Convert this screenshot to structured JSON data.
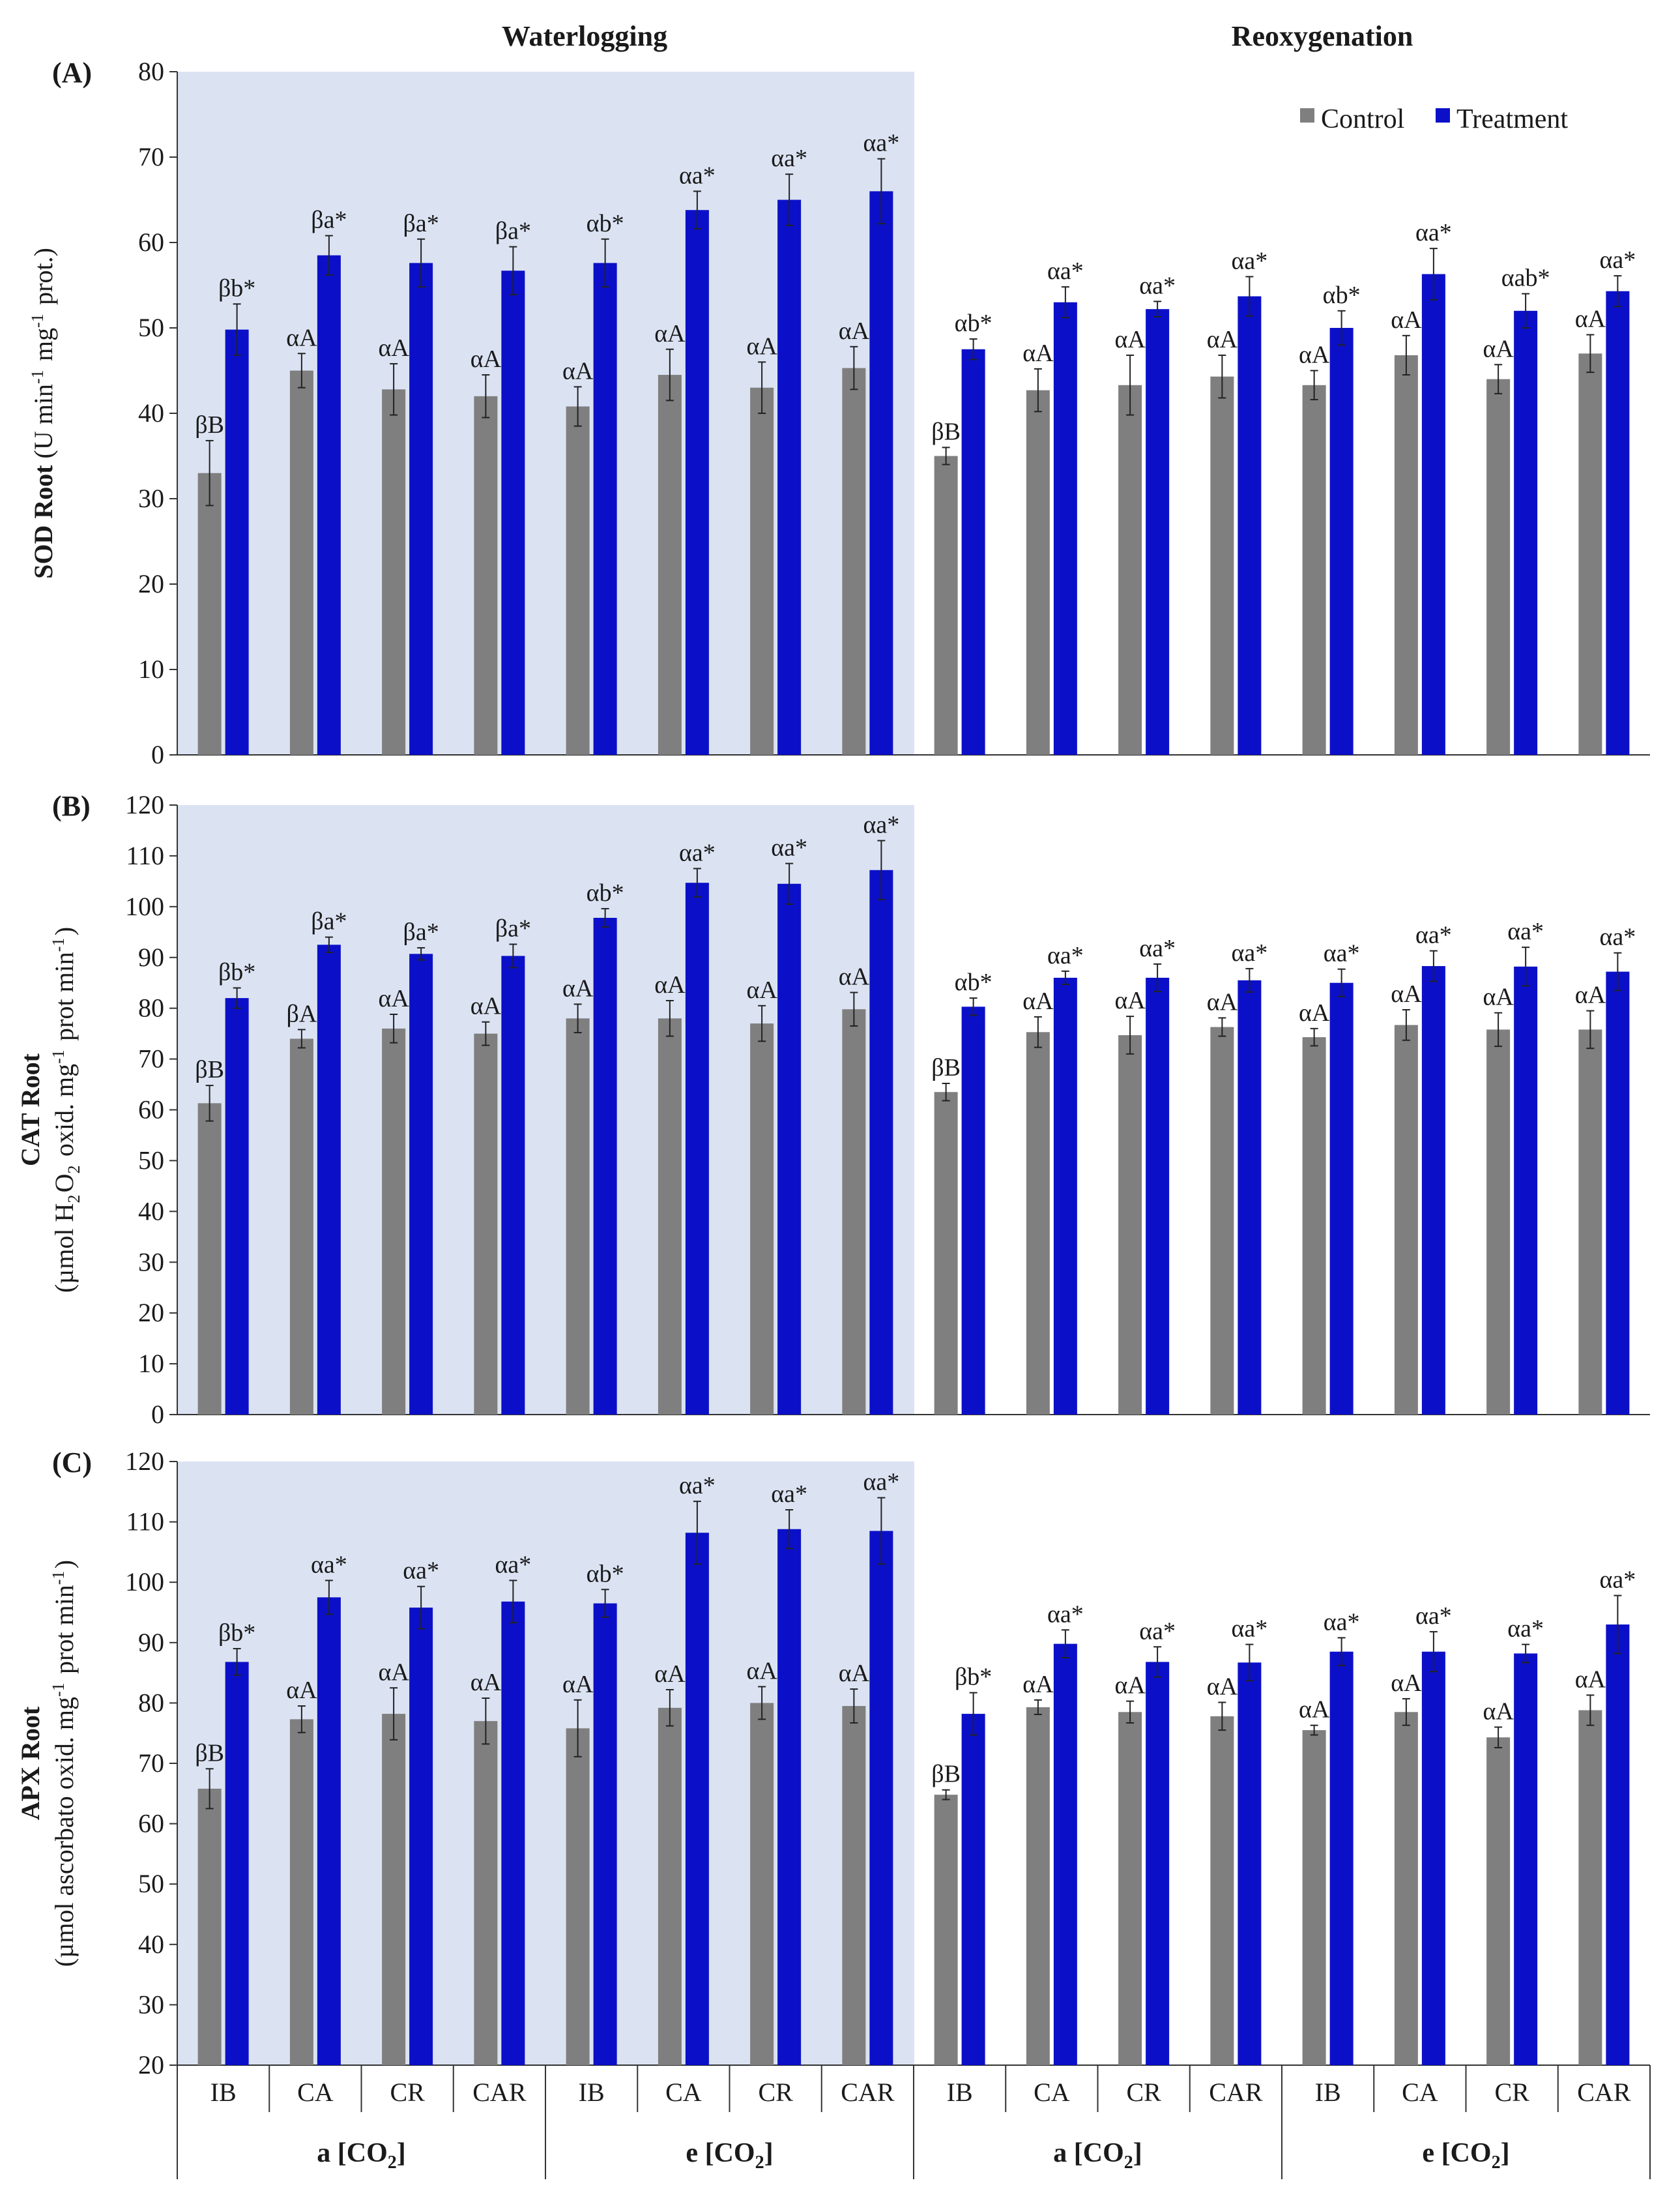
{
  "titles": {
    "left": "Waterlogging",
    "right": "Reoxygenation"
  },
  "legend": {
    "control": "Control",
    "treatment": "Treatment"
  },
  "colors": {
    "control": "#7f7f7f",
    "treatment": "#0b10c8",
    "shade": "#dbe3f3",
    "error": "#222222"
  },
  "x_axis": {
    "categories": [
      "IB",
      "CA",
      "CR",
      "CAR",
      "IB",
      "CA",
      "CR",
      "CAR",
      "IB",
      "CA",
      "CR",
      "CAR",
      "IB",
      "CA",
      "CR",
      "CAR"
    ],
    "groups": [
      "a [CO2]",
      "e [CO2]",
      "a [CO2]",
      "e [CO2]"
    ]
  },
  "chart_data": [
    {
      "type": "bar",
      "panel_label": "(A)",
      "ylabel": "SOD Root (U min-1 mg-1 prot.)",
      "ylim": [
        0,
        80
      ],
      "ytick_step": 10,
      "yticks": [
        "0",
        "10",
        "20",
        "30",
        "40",
        "50",
        "60",
        "70",
        "80"
      ],
      "shaded_region": "Waterlogging",
      "series": [
        {
          "name": "Control",
          "values": [
            33,
            45,
            42.8,
            42,
            40.8,
            44.5,
            43,
            45.3,
            35,
            42.7,
            43.3,
            44.3,
            43.3,
            46.8,
            44,
            47
          ],
          "errors": [
            3.8,
            2,
            3,
            2.5,
            2.3,
            3,
            3,
            2.5,
            1,
            2.5,
            3.5,
            2.5,
            1.7,
            2.3,
            1.7,
            2.2
          ],
          "labels": [
            "βB",
            "αA",
            "αA",
            "αA",
            "αA",
            "αA",
            "αA",
            "αA",
            "βB",
            "αA",
            "αA",
            "αA",
            "αA",
            "αA",
            "αA",
            "αA"
          ]
        },
        {
          "name": "Treatment",
          "values": [
            49.8,
            58.5,
            57.6,
            56.7,
            57.6,
            63.8,
            65,
            66,
            47.5,
            53,
            52.2,
            53.7,
            50,
            56.3,
            52,
            54.3
          ],
          "errors": [
            3,
            2.3,
            2.8,
            2.8,
            2.8,
            2.2,
            3,
            3.8,
            1.2,
            1.8,
            0.9,
            2.3,
            2,
            3,
            2,
            1.8
          ],
          "labels": [
            "βb*",
            "βa*",
            "βa*",
            "βa*",
            "αb*",
            "αa*",
            "αa*",
            "αa*",
            "αb*",
            "αa*",
            "αa*",
            "αa*",
            "αb*",
            "αa*",
            "αab*",
            "αa*"
          ]
        }
      ]
    },
    {
      "type": "bar",
      "panel_label": "(B)",
      "ylabel_line1": "CAT Root",
      "ylabel_line2": "(µmol H2O2 oxid. mg-1 prot min-1)",
      "ylim": [
        0,
        120
      ],
      "ytick_step": 10,
      "yticks": [
        "0",
        "10",
        "20",
        "30",
        "40",
        "50",
        "60",
        "70",
        "80",
        "90",
        "100",
        "110",
        "120"
      ],
      "shaded_region": "Waterlogging",
      "series": [
        {
          "name": "Control",
          "values": [
            61.3,
            74,
            76,
            75,
            78,
            78,
            77,
            79.8,
            63.5,
            75.3,
            74.7,
            76.3,
            74.3,
            76.7,
            75.8,
            75.8
          ],
          "errors": [
            3.5,
            1.8,
            2.8,
            2.3,
            2.8,
            3.5,
            3.5,
            3.3,
            1.7,
            3,
            3.7,
            1.8,
            1.7,
            3,
            3.3,
            3.7
          ],
          "labels": [
            "βB",
            "βA",
            "αA",
            "αA",
            "αA",
            "αA",
            "αA",
            "αA",
            "βB",
            "αA",
            "αA",
            "αA",
            "αA",
            "αA",
            "αA",
            "αA"
          ]
        },
        {
          "name": "Treatment",
          "values": [
            82,
            92.5,
            90.7,
            90.3,
            97.8,
            104.7,
            104.5,
            107.2,
            80.3,
            86,
            86,
            85.5,
            85,
            88.3,
            88.2,
            87.2
          ],
          "errors": [
            2,
            1.5,
            1.2,
            2.3,
            1.8,
            2.8,
            4,
            5.8,
            1.7,
            1.3,
            2.7,
            2.3,
            2.7,
            3,
            3.8,
            3.7
          ],
          "labels": [
            "βb*",
            "βa*",
            "βa*",
            "βa*",
            "αb*",
            "αa*",
            "αa*",
            "αa*",
            "αb*",
            "αa*",
            "αa*",
            "αa*",
            "αa*",
            "αa*",
            "αa*",
            "αa*"
          ]
        }
      ]
    },
    {
      "type": "bar",
      "panel_label": "(C)",
      "ylabel_line1": "APX Root",
      "ylabel_line2": "(µmol ascorbato oxid. mg-1 prot min-1)",
      "ylim": [
        20,
        120
      ],
      "ytick_step": 10,
      "yticks": [
        "20",
        "30",
        "40",
        "50",
        "60",
        "70",
        "80",
        "90",
        "100",
        "110",
        "120"
      ],
      "shaded_region": "Waterlogging",
      "series": [
        {
          "name": "Control",
          "values": [
            65.8,
            77.3,
            78.2,
            77,
            75.8,
            79.2,
            80,
            79.5,
            64.8,
            79.3,
            78.5,
            77.8,
            75.5,
            78.5,
            74.3,
            78.8
          ],
          "errors": [
            3.3,
            2.2,
            4.3,
            3.8,
            4.7,
            3,
            2.7,
            2.8,
            0.8,
            1.2,
            1.8,
            2.3,
            0.8,
            2.2,
            1.7,
            2.5
          ],
          "labels": [
            "βB",
            "αA",
            "αA",
            "αA",
            "αA",
            "αA",
            "αA",
            "αA",
            "βB",
            "αA",
            "αA",
            "αA",
            "αA",
            "αA",
            "αA",
            "αA"
          ]
        },
        {
          "name": "Treatment",
          "values": [
            86.8,
            97.5,
            95.8,
            96.8,
            96.5,
            108.2,
            108.8,
            108.5,
            78.2,
            89.8,
            86.8,
            86.7,
            88.5,
            88.5,
            88.2,
            93
          ],
          "errors": [
            2.2,
            2.8,
            3.5,
            3.5,
            2.3,
            5.2,
            3.2,
            5.5,
            3.5,
            2.3,
            2.5,
            3,
            2.3,
            3.3,
            1.5,
            4.8
          ],
          "labels": [
            "βb*",
            "αa*",
            "αa*",
            "αa*",
            "αb*",
            "αa*",
            "αa*",
            "αa*",
            "βb*",
            "αa*",
            "αa*",
            "αa*",
            "αa*",
            "αa*",
            "αa*",
            "αa*"
          ]
        }
      ]
    }
  ]
}
